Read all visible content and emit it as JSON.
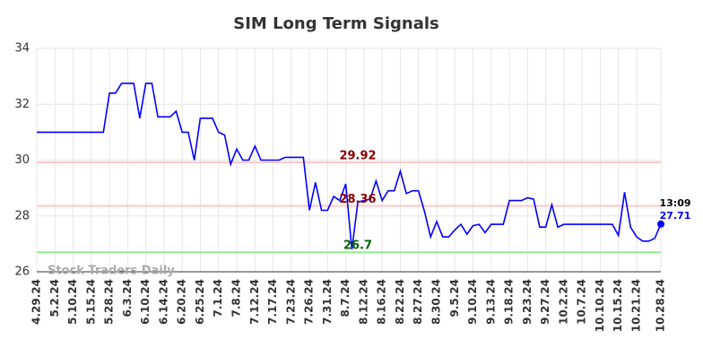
{
  "chart_data": {
    "type": "line",
    "title": "SIM Long Term Signals",
    "watermark": "Stock Traders Daily",
    "categories": [
      "4.29.24",
      null,
      null,
      "5.2.24",
      null,
      null,
      "5.10.24",
      null,
      null,
      "5.15.24",
      null,
      null,
      "5.28.24",
      null,
      null,
      "6.3.24",
      null,
      null,
      "6.10.24",
      null,
      null,
      "6.14.24",
      null,
      null,
      "6.20.24",
      null,
      null,
      "6.25.24",
      null,
      null,
      "7.1.24",
      null,
      null,
      "7.8.24",
      null,
      null,
      "7.12.24",
      null,
      null,
      "7.17.24",
      null,
      null,
      "7.23.24",
      null,
      null,
      "7.26.24",
      null,
      null,
      "7.31.24",
      null,
      null,
      "8.7.24",
      null,
      null,
      "8.12.24",
      null,
      null,
      "8.16.24",
      null,
      null,
      "8.22.24",
      null,
      null,
      "8.27.24",
      null,
      null,
      "8.30.24",
      null,
      null,
      "9.5.24",
      null,
      null,
      "9.10.24",
      null,
      null,
      "9.13.24",
      null,
      null,
      "9.18.24",
      null,
      null,
      "9.23.24",
      null,
      null,
      "9.27.24",
      null,
      null,
      "10.2.24",
      null,
      null,
      "10.7.24",
      null,
      null,
      "10.10.24",
      null,
      null,
      "10.15.24",
      null,
      null,
      "10.21.24",
      null,
      null,
      null,
      "10.28.24"
    ],
    "values": [
      31,
      31,
      31,
      31,
      31,
      31,
      31,
      31,
      31,
      31,
      31,
      31,
      32.4,
      32.4,
      32.75,
      32.75,
      32.75,
      31.5,
      32.75,
      32.75,
      31.55,
      31.55,
      31.55,
      31.75,
      31,
      31,
      30,
      31.5,
      31.5,
      31.5,
      31,
      30.9,
      29.85,
      30.4,
      30,
      30,
      30.5,
      30,
      30,
      30,
      30,
      30.1,
      30.1,
      30.1,
      30.1,
      28.2,
      29.2,
      28.2,
      28.2,
      28.7,
      28.55,
      29.15,
      26.8,
      28.5,
      28.55,
      28.6,
      29.25,
      28.55,
      28.9,
      28.9,
      29.6,
      28.8,
      28.9,
      28.9,
      28.15,
      27.25,
      27.8,
      27.25,
      27.25,
      27.5,
      27.7,
      27.35,
      27.65,
      27.7,
      27.4,
      27.7,
      27.7,
      27.7,
      28.55,
      28.55,
      28.55,
      28.65,
      28.6,
      27.6,
      27.6,
      28.4,
      27.6,
      27.7,
      27.7,
      27.7,
      27.7,
      27.7,
      27.7,
      27.7,
      27.7,
      27.7,
      27.3,
      28.85,
      27.6,
      27.25,
      27.1,
      27.1,
      27.2,
      27.71
    ],
    "color": "#0000ff",
    "last_time": "13:09",
    "hlines": [
      {
        "value": 29.92,
        "color": "#ffc8c8",
        "label_color": "#8b0000"
      },
      {
        "value": 28.36,
        "color": "#ffc8c8",
        "label_color": "#8b0000"
      },
      {
        "value": 26.7,
        "color": "#90ee90",
        "label_color": "#006400"
      }
    ],
    "ylim": [
      26,
      34
    ],
    "yticks": [
      26,
      28,
      30,
      32,
      34
    ],
    "grid": true
  }
}
